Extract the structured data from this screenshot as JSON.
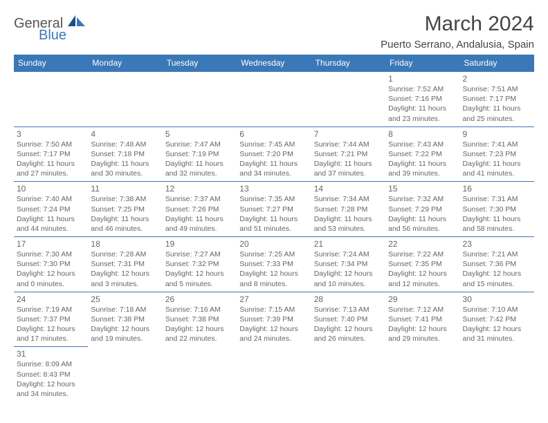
{
  "logo": {
    "text1": "General",
    "text2": "Blue"
  },
  "title": "March 2024",
  "subtitle": "Puerto Serrano, Andalusia, Spain",
  "styling": {
    "header_bg": "#3a78b7",
    "header_fg": "#ffffff",
    "cell_border": "#3a78b7",
    "text_color": "#666666",
    "title_color": "#444444",
    "day_fontsize": 12,
    "info_fontsize": 10.5
  },
  "weekdays": [
    "Sunday",
    "Monday",
    "Tuesday",
    "Wednesday",
    "Thursday",
    "Friday",
    "Saturday"
  ],
  "weeks": [
    [
      null,
      null,
      null,
      null,
      null,
      {
        "n": "1",
        "sr": "Sunrise: 7:52 AM",
        "ss": "Sunset: 7:16 PM",
        "dl1": "Daylight: 11 hours",
        "dl2": "and 23 minutes."
      },
      {
        "n": "2",
        "sr": "Sunrise: 7:51 AM",
        "ss": "Sunset: 7:17 PM",
        "dl1": "Daylight: 11 hours",
        "dl2": "and 25 minutes."
      }
    ],
    [
      {
        "n": "3",
        "sr": "Sunrise: 7:50 AM",
        "ss": "Sunset: 7:17 PM",
        "dl1": "Daylight: 11 hours",
        "dl2": "and 27 minutes."
      },
      {
        "n": "4",
        "sr": "Sunrise: 7:48 AM",
        "ss": "Sunset: 7:18 PM",
        "dl1": "Daylight: 11 hours",
        "dl2": "and 30 minutes."
      },
      {
        "n": "5",
        "sr": "Sunrise: 7:47 AM",
        "ss": "Sunset: 7:19 PM",
        "dl1": "Daylight: 11 hours",
        "dl2": "and 32 minutes."
      },
      {
        "n": "6",
        "sr": "Sunrise: 7:45 AM",
        "ss": "Sunset: 7:20 PM",
        "dl1": "Daylight: 11 hours",
        "dl2": "and 34 minutes."
      },
      {
        "n": "7",
        "sr": "Sunrise: 7:44 AM",
        "ss": "Sunset: 7:21 PM",
        "dl1": "Daylight: 11 hours",
        "dl2": "and 37 minutes."
      },
      {
        "n": "8",
        "sr": "Sunrise: 7:43 AM",
        "ss": "Sunset: 7:22 PM",
        "dl1": "Daylight: 11 hours",
        "dl2": "and 39 minutes."
      },
      {
        "n": "9",
        "sr": "Sunrise: 7:41 AM",
        "ss": "Sunset: 7:23 PM",
        "dl1": "Daylight: 11 hours",
        "dl2": "and 41 minutes."
      }
    ],
    [
      {
        "n": "10",
        "sr": "Sunrise: 7:40 AM",
        "ss": "Sunset: 7:24 PM",
        "dl1": "Daylight: 11 hours",
        "dl2": "and 44 minutes."
      },
      {
        "n": "11",
        "sr": "Sunrise: 7:38 AM",
        "ss": "Sunset: 7:25 PM",
        "dl1": "Daylight: 11 hours",
        "dl2": "and 46 minutes."
      },
      {
        "n": "12",
        "sr": "Sunrise: 7:37 AM",
        "ss": "Sunset: 7:26 PM",
        "dl1": "Daylight: 11 hours",
        "dl2": "and 49 minutes."
      },
      {
        "n": "13",
        "sr": "Sunrise: 7:35 AM",
        "ss": "Sunset: 7:27 PM",
        "dl1": "Daylight: 11 hours",
        "dl2": "and 51 minutes."
      },
      {
        "n": "14",
        "sr": "Sunrise: 7:34 AM",
        "ss": "Sunset: 7:28 PM",
        "dl1": "Daylight: 11 hours",
        "dl2": "and 53 minutes."
      },
      {
        "n": "15",
        "sr": "Sunrise: 7:32 AM",
        "ss": "Sunset: 7:29 PM",
        "dl1": "Daylight: 11 hours",
        "dl2": "and 56 minutes."
      },
      {
        "n": "16",
        "sr": "Sunrise: 7:31 AM",
        "ss": "Sunset: 7:30 PM",
        "dl1": "Daylight: 11 hours",
        "dl2": "and 58 minutes."
      }
    ],
    [
      {
        "n": "17",
        "sr": "Sunrise: 7:30 AM",
        "ss": "Sunset: 7:30 PM",
        "dl1": "Daylight: 12 hours",
        "dl2": "and 0 minutes."
      },
      {
        "n": "18",
        "sr": "Sunrise: 7:28 AM",
        "ss": "Sunset: 7:31 PM",
        "dl1": "Daylight: 12 hours",
        "dl2": "and 3 minutes."
      },
      {
        "n": "19",
        "sr": "Sunrise: 7:27 AM",
        "ss": "Sunset: 7:32 PM",
        "dl1": "Daylight: 12 hours",
        "dl2": "and 5 minutes."
      },
      {
        "n": "20",
        "sr": "Sunrise: 7:25 AM",
        "ss": "Sunset: 7:33 PM",
        "dl1": "Daylight: 12 hours",
        "dl2": "and 8 minutes."
      },
      {
        "n": "21",
        "sr": "Sunrise: 7:24 AM",
        "ss": "Sunset: 7:34 PM",
        "dl1": "Daylight: 12 hours",
        "dl2": "and 10 minutes."
      },
      {
        "n": "22",
        "sr": "Sunrise: 7:22 AM",
        "ss": "Sunset: 7:35 PM",
        "dl1": "Daylight: 12 hours",
        "dl2": "and 12 minutes."
      },
      {
        "n": "23",
        "sr": "Sunrise: 7:21 AM",
        "ss": "Sunset: 7:36 PM",
        "dl1": "Daylight: 12 hours",
        "dl2": "and 15 minutes."
      }
    ],
    [
      {
        "n": "24",
        "sr": "Sunrise: 7:19 AM",
        "ss": "Sunset: 7:37 PM",
        "dl1": "Daylight: 12 hours",
        "dl2": "and 17 minutes."
      },
      {
        "n": "25",
        "sr": "Sunrise: 7:18 AM",
        "ss": "Sunset: 7:38 PM",
        "dl1": "Daylight: 12 hours",
        "dl2": "and 19 minutes."
      },
      {
        "n": "26",
        "sr": "Sunrise: 7:16 AM",
        "ss": "Sunset: 7:38 PM",
        "dl1": "Daylight: 12 hours",
        "dl2": "and 22 minutes."
      },
      {
        "n": "27",
        "sr": "Sunrise: 7:15 AM",
        "ss": "Sunset: 7:39 PM",
        "dl1": "Daylight: 12 hours",
        "dl2": "and 24 minutes."
      },
      {
        "n": "28",
        "sr": "Sunrise: 7:13 AM",
        "ss": "Sunset: 7:40 PM",
        "dl1": "Daylight: 12 hours",
        "dl2": "and 26 minutes."
      },
      {
        "n": "29",
        "sr": "Sunrise: 7:12 AM",
        "ss": "Sunset: 7:41 PM",
        "dl1": "Daylight: 12 hours",
        "dl2": "and 29 minutes."
      },
      {
        "n": "30",
        "sr": "Sunrise: 7:10 AM",
        "ss": "Sunset: 7:42 PM",
        "dl1": "Daylight: 12 hours",
        "dl2": "and 31 minutes."
      }
    ],
    [
      {
        "n": "31",
        "sr": "Sunrise: 8:09 AM",
        "ss": "Sunset: 8:43 PM",
        "dl1": "Daylight: 12 hours",
        "dl2": "and 34 minutes."
      },
      null,
      null,
      null,
      null,
      null,
      null
    ]
  ]
}
